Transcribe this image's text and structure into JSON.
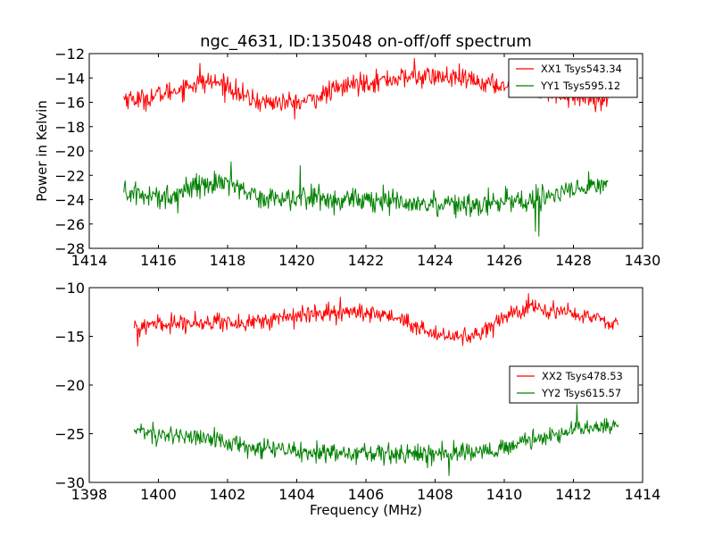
{
  "chart_data": [
    {
      "type": "line",
      "title": "ngc_4631, ID:135048 on-off/off spectrum",
      "xlabel": "",
      "ylabel": "Power in Kelvin",
      "xlim": [
        1414,
        1430
      ],
      "ylim": [
        -28,
        -12
      ],
      "xticks": [
        1414,
        1416,
        1418,
        1420,
        1422,
        1424,
        1426,
        1428,
        1430
      ],
      "yticks": [
        -28,
        -26,
        -24,
        -22,
        -20,
        -18,
        -16,
        -14,
        -12
      ],
      "xtick_labels": [
        "1414",
        "1416",
        "1418",
        "1420",
        "1422",
        "1424",
        "1426",
        "1428",
        "1430"
      ],
      "ytick_labels": [
        "−28",
        "−26",
        "−24",
        "−22",
        "−20",
        "−18",
        "−16",
        "−14",
        "−12"
      ],
      "legend_position": "top-right",
      "grid": false,
      "series": [
        {
          "name": "XX1 Tsys543.34",
          "color": "#ff0000",
          "x_range": [
            1415.0,
            1429.0
          ],
          "noise": 0.7,
          "spikes": [
            [
              1428.8,
              -16.7
            ],
            [
              1417.2,
              -12.8
            ],
            [
              1423.4,
              -12.4
            ]
          ],
          "x": [
            1415.0,
            1415.5,
            1416.0,
            1416.5,
            1417.0,
            1417.5,
            1418.0,
            1418.5,
            1419.0,
            1419.5,
            1420.0,
            1420.5,
            1421.0,
            1421.5,
            1422.0,
            1422.5,
            1423.0,
            1423.5,
            1424.0,
            1424.5,
            1425.0,
            1425.5,
            1426.0,
            1426.5,
            1427.0,
            1427.5,
            1428.0,
            1428.5,
            1429.0
          ],
          "y": [
            -15.6,
            -15.8,
            -15.4,
            -15.0,
            -14.5,
            -14.3,
            -14.6,
            -15.6,
            -16.0,
            -16.0,
            -16.1,
            -15.7,
            -15.1,
            -14.6,
            -14.3,
            -14.2,
            -14.0,
            -13.9,
            -13.9,
            -14.0,
            -14.2,
            -14.5,
            -14.6,
            -14.8,
            -15.0,
            -15.2,
            -15.5,
            -15.6,
            -15.5
          ]
        },
        {
          "name": "YY1 Tsys595.12",
          "color": "#008000",
          "x_range": [
            1415.0,
            1429.0
          ],
          "noise": 0.8,
          "spikes": [
            [
              1418.1,
              -20.9
            ],
            [
              1420.1,
              -21.2
            ],
            [
              1427.0,
              -27.0
            ],
            [
              1426.9,
              -26.6
            ]
          ],
          "x": [
            1415.0,
            1415.5,
            1416.0,
            1416.5,
            1417.0,
            1417.5,
            1418.0,
            1418.5,
            1419.0,
            1419.5,
            1420.0,
            1420.5,
            1421.0,
            1421.5,
            1422.0,
            1422.5,
            1423.0,
            1423.5,
            1424.0,
            1424.5,
            1425.0,
            1425.5,
            1426.0,
            1426.5,
            1427.0,
            1427.5,
            1428.0,
            1428.5,
            1429.0
          ],
          "y": [
            -23.4,
            -23.6,
            -23.8,
            -23.6,
            -22.9,
            -22.6,
            -22.5,
            -23.2,
            -23.9,
            -23.8,
            -23.9,
            -23.8,
            -24.0,
            -24.0,
            -24.1,
            -24.1,
            -24.2,
            -24.2,
            -24.3,
            -24.3,
            -24.3,
            -24.3,
            -24.2,
            -24.1,
            -23.9,
            -23.6,
            -23.3,
            -23.0,
            -22.6
          ]
        }
      ]
    },
    {
      "type": "line",
      "title": "",
      "xlabel": "Frequency (MHz)",
      "ylabel": "",
      "xlim": [
        1398,
        1414
      ],
      "ylim": [
        -30,
        -10
      ],
      "xticks": [
        1398,
        1400,
        1402,
        1404,
        1406,
        1408,
        1410,
        1412,
        1414
      ],
      "yticks": [
        -30,
        -25,
        -20,
        -15,
        -10
      ],
      "xtick_labels": [
        "1398",
        "1400",
        "1402",
        "1404",
        "1406",
        "1408",
        "1410",
        "1412",
        "1414"
      ],
      "ytick_labels": [
        "−30",
        "−25",
        "−20",
        "−15",
        "−10"
      ],
      "legend_position": "center-right",
      "grid": false,
      "series": [
        {
          "name": "XX2 Tsys478.53",
          "color": "#ff0000",
          "x_range": [
            1399.3,
            1413.3
          ],
          "noise": 0.7,
          "spikes": [
            [
              1399.4,
              -16.0
            ],
            [
              1410.7,
              -10.6
            ]
          ],
          "x": [
            1399.3,
            1399.8,
            1400.3,
            1400.8,
            1401.3,
            1401.8,
            1402.3,
            1402.8,
            1403.3,
            1403.8,
            1404.3,
            1404.8,
            1405.3,
            1405.8,
            1406.3,
            1406.8,
            1407.3,
            1407.8,
            1408.3,
            1408.8,
            1409.3,
            1409.8,
            1410.3,
            1410.8,
            1411.3,
            1411.8,
            1412.3,
            1412.8,
            1413.3
          ],
          "y": [
            -14.1,
            -13.9,
            -13.7,
            -13.5,
            -13.6,
            -13.5,
            -13.7,
            -13.5,
            -13.3,
            -13.0,
            -12.8,
            -12.6,
            -12.5,
            -12.6,
            -12.7,
            -13.0,
            -13.8,
            -14.6,
            -15.0,
            -15.1,
            -14.6,
            -13.4,
            -12.4,
            -12.1,
            -12.2,
            -12.4,
            -12.9,
            -13.3,
            -13.8
          ]
        },
        {
          "name": "YY2 Tsys615.57",
          "color": "#008000",
          "x_range": [
            1399.3,
            1413.3
          ],
          "noise": 0.8,
          "spikes": [
            [
              1412.1,
              -22.0
            ],
            [
              1408.4,
              -29.3
            ]
          ],
          "x": [
            1399.3,
            1399.8,
            1400.3,
            1400.8,
            1401.3,
            1401.8,
            1402.3,
            1402.8,
            1403.3,
            1403.8,
            1404.3,
            1404.8,
            1405.3,
            1405.8,
            1406.3,
            1406.8,
            1407.3,
            1407.8,
            1408.3,
            1408.8,
            1409.3,
            1409.8,
            1410.3,
            1410.8,
            1411.3,
            1411.8,
            1412.3,
            1412.8,
            1413.3
          ],
          "y": [
            -24.7,
            -24.9,
            -25.1,
            -25.3,
            -25.5,
            -25.8,
            -26.2,
            -26.5,
            -26.7,
            -26.8,
            -26.9,
            -27.0,
            -27.0,
            -27.1,
            -27.1,
            -27.1,
            -27.1,
            -27.1,
            -27.0,
            -26.9,
            -26.8,
            -26.6,
            -26.2,
            -25.7,
            -25.3,
            -24.9,
            -24.5,
            -24.3,
            -24.2
          ]
        }
      ]
    }
  ]
}
